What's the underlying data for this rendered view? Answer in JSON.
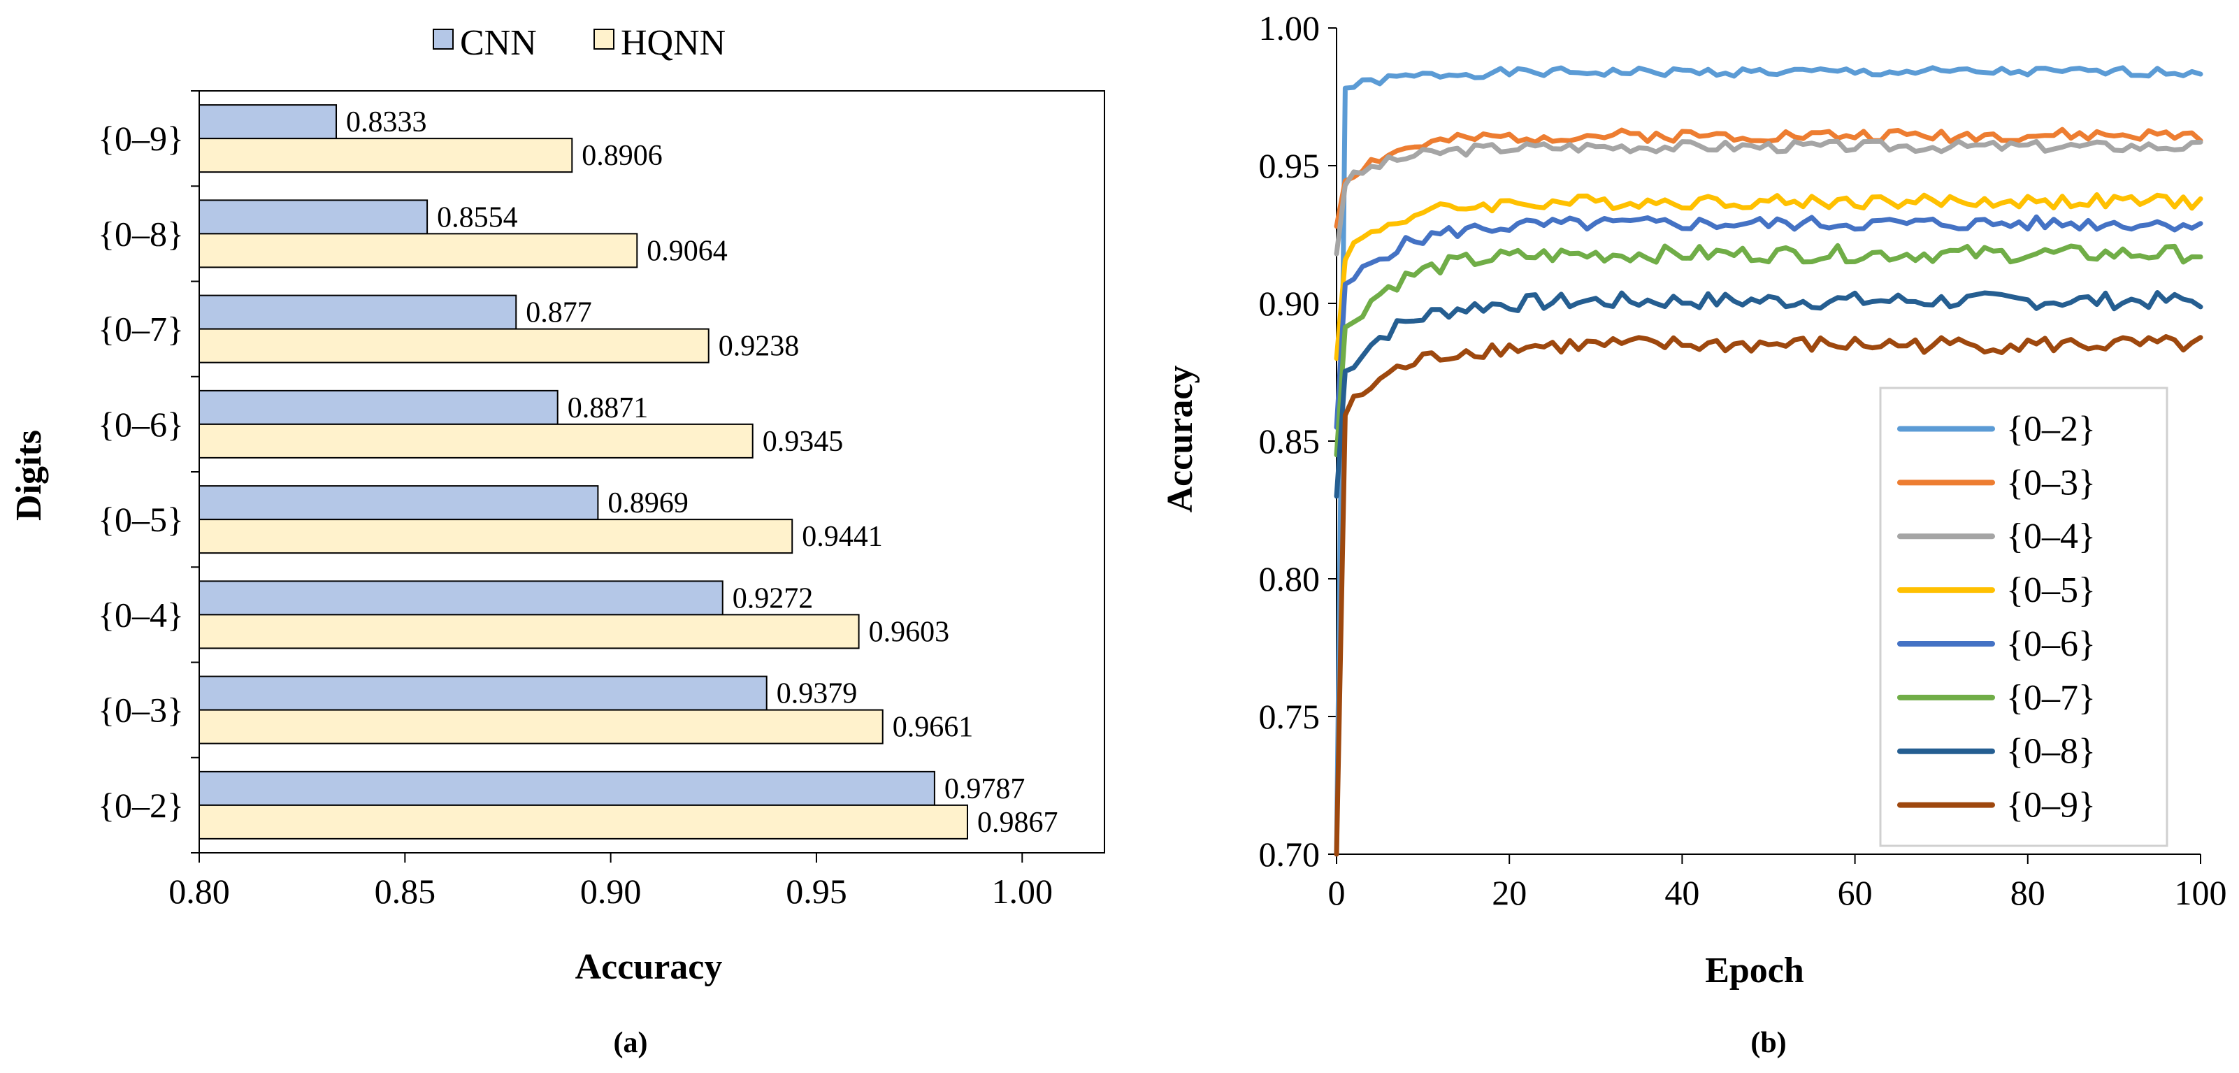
{
  "figure": {
    "caption_a": "(a)",
    "caption_b": "(b)"
  },
  "chart_data": [
    {
      "type": "bar",
      "orientation": "horizontal",
      "title": "",
      "xlabel": "Accuracy",
      "ylabel": "Digits",
      "xlim": [
        0.8,
        1.02
      ],
      "xticks": [
        "0.80",
        "0.85",
        "0.90",
        "0.95",
        "1.00"
      ],
      "categories": [
        "{0–9}",
        "{0–8}",
        "{0–7}",
        "{0–6}",
        "{0–5}",
        "{0–4}",
        "{0–3}",
        "{0–2}"
      ],
      "series": [
        {
          "name": "CNN",
          "color": "#b4c7e7",
          "values": [
            0.8333,
            0.8554,
            0.877,
            0.8871,
            0.8969,
            0.9272,
            0.9379,
            0.9787
          ],
          "labels": [
            "0.8333",
            "0.8554",
            "0.877",
            "0.8871",
            "0.8969",
            "0.9272",
            "0.9379",
            "0.9787"
          ]
        },
        {
          "name": "HQNN",
          "color": "#fff2cc",
          "values": [
            0.8906,
            0.9064,
            0.9238,
            0.9345,
            0.9441,
            0.9603,
            0.9661,
            0.9867
          ],
          "labels": [
            "0.8906",
            "0.9064",
            "0.9238",
            "0.9345",
            "0.9441",
            "0.9603",
            "0.9661",
            "0.9867"
          ]
        }
      ],
      "legend": "top-center"
    },
    {
      "type": "line",
      "title": "",
      "xlabel": "Epoch",
      "ylabel": "Accuracy",
      "xlim": [
        0,
        100
      ],
      "ylim": [
        0.7,
        1.0
      ],
      "xticks": [
        "0",
        "20",
        "40",
        "60",
        "80",
        "100"
      ],
      "yticks": [
        "0.70",
        "0.75",
        "0.80",
        "0.85",
        "0.90",
        "0.95",
        "1.00"
      ],
      "legend": "bottom-right",
      "series": [
        {
          "name": "{0–2}",
          "color": "#5b9bd5",
          "start": 0.7,
          "early": 0.978,
          "plateau": 0.984,
          "jitter": 0.0016,
          "seed": 1
        },
        {
          "name": "{0–3}",
          "color": "#ed7d31",
          "start": 0.928,
          "early": 0.945,
          "plateau": 0.961,
          "jitter": 0.0022,
          "seed": 2
        },
        {
          "name": "{0–4}",
          "color": "#a5a5a5",
          "start": 0.918,
          "early": 0.944,
          "plateau": 0.957,
          "jitter": 0.002,
          "seed": 3
        },
        {
          "name": "{0–5}",
          "color": "#ffc000",
          "start": 0.88,
          "early": 0.918,
          "plateau": 0.937,
          "jitter": 0.0025,
          "seed": 4
        },
        {
          "name": "{0–6}",
          "color": "#4472c4",
          "start": 0.855,
          "early": 0.905,
          "plateau": 0.929,
          "jitter": 0.0025,
          "seed": 5
        },
        {
          "name": "{0–7}",
          "color": "#70ad47",
          "start": 0.845,
          "early": 0.89,
          "plateau": 0.918,
          "jitter": 0.003,
          "seed": 6
        },
        {
          "name": "{0–8}",
          "color": "#255e91",
          "start": 0.83,
          "early": 0.875,
          "plateau": 0.901,
          "jitter": 0.003,
          "seed": 7
        },
        {
          "name": "{0–9}",
          "color": "#9e480e",
          "start": 0.7,
          "early": 0.86,
          "plateau": 0.885,
          "jitter": 0.003,
          "seed": 8
        }
      ]
    }
  ]
}
